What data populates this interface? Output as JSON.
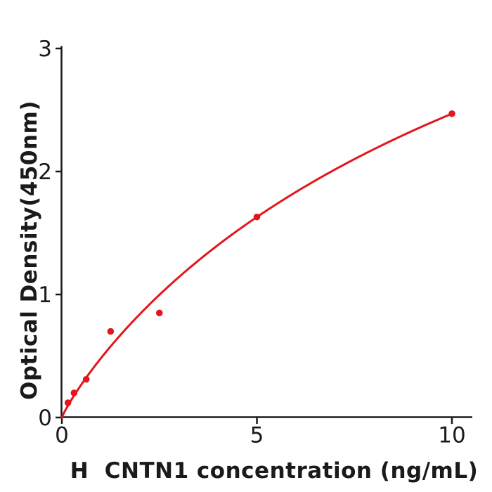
{
  "figure": {
    "background_color": "#ffffff",
    "xlabel": "H  CNTN1 concentration (ng/mL)",
    "ylabel": "Optical Density(450nm)"
  },
  "chart_data": {
    "type": "scatter",
    "title": "",
    "xlabel": "H  CNTN1 concentration (ng/mL)",
    "ylabel": "Optical Density(450nm)",
    "x": [
      0.156,
      0.3125,
      0.625,
      1.25,
      2.5,
      5,
      10
    ],
    "y": [
      0.12,
      0.2,
      0.31,
      0.7,
      0.85,
      1.63,
      2.47
    ],
    "fit_curve": {
      "model": "hill",
      "vmax": 6.1,
      "k": 15.34,
      "h": 0.9,
      "range": [
        0,
        10
      ]
    },
    "xticks": [
      0,
      5,
      10
    ],
    "yticks": [
      0,
      1,
      2,
      3
    ],
    "xlim": [
      0,
      10.52
    ],
    "ylim": [
      0,
      3.02
    ],
    "grid": false,
    "legend_position": "none",
    "marker_color": "#e2161c",
    "line_color": "#e2161c",
    "axis_color": "#1a1a1a",
    "tick_font_size": 31
  }
}
